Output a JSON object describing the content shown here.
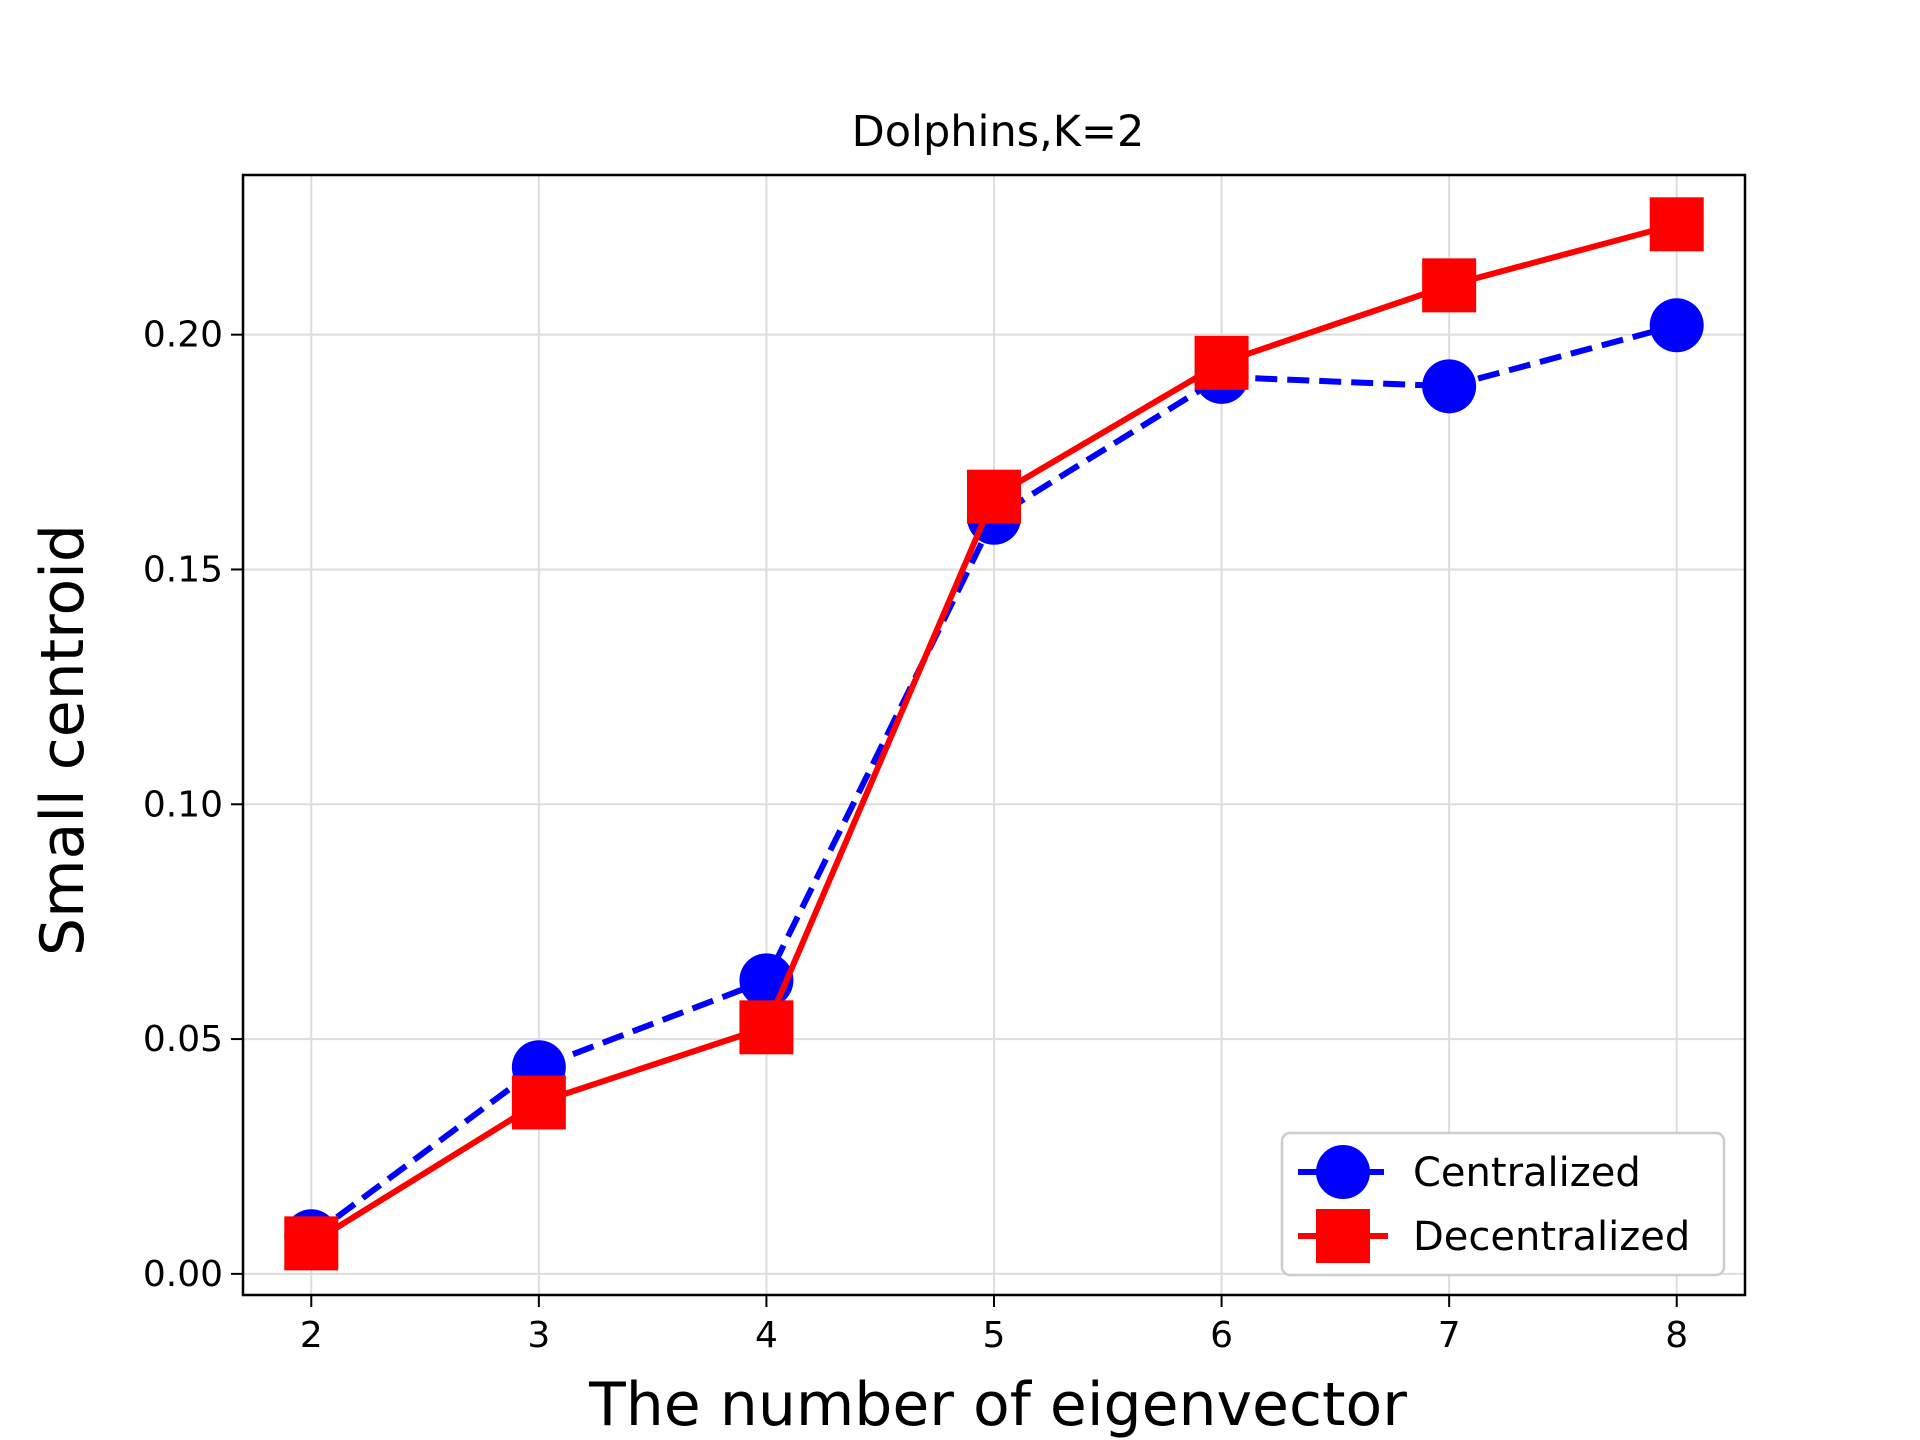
{
  "chart_data": {
    "type": "line",
    "title": "Dolphins,K=2",
    "xlabel": "The number of eigenvector",
    "ylabel": "Small centroid",
    "x": [
      2,
      3,
      4,
      5,
      6,
      7,
      8
    ],
    "xlim": [
      1.7,
      8.3
    ],
    "ylim": [
      -0.0045,
      0.234
    ],
    "xticks": [
      "2",
      "3",
      "4",
      "5",
      "6",
      "7",
      "8"
    ],
    "yticks": [
      "0.00",
      "0.05",
      "0.10",
      "0.15",
      "0.20"
    ],
    "grid": true,
    "legend_position": "lower right",
    "series": [
      {
        "name": "Centralized",
        "values": [
          0.008,
          0.044,
          0.0625,
          0.161,
          0.191,
          0.189,
          0.202
        ],
        "color": "#0000ff",
        "line_style": "dashed",
        "marker": "circle"
      },
      {
        "name": "Decentralized",
        "values": [
          0.0065,
          0.0365,
          0.0525,
          0.1655,
          0.194,
          0.2105,
          0.2235
        ],
        "color": "#ff0000",
        "line_style": "solid",
        "marker": "square"
      }
    ]
  }
}
